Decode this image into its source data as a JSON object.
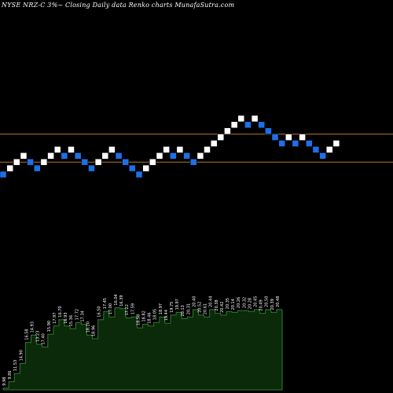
{
  "title": "NYSE NRZ-C 3%~  Closing Daily data  Renko  charts MunafaSutra.com",
  "chart_data": {
    "type": "renko",
    "title": "NYSE NRZ-C 3%~  Closing Daily data  Renko  charts MunafaSutra.com",
    "bricks": [
      {
        "level": 0,
        "dir": "down"
      },
      {
        "level": 1,
        "dir": "up"
      },
      {
        "level": 2,
        "dir": "up"
      },
      {
        "level": 3,
        "dir": "up"
      },
      {
        "level": 2,
        "dir": "down"
      },
      {
        "level": 1,
        "dir": "down"
      },
      {
        "level": 2,
        "dir": "up"
      },
      {
        "level": 3,
        "dir": "up"
      },
      {
        "level": 4,
        "dir": "up"
      },
      {
        "level": 3,
        "dir": "down"
      },
      {
        "level": 4,
        "dir": "up"
      },
      {
        "level": 3,
        "dir": "down"
      },
      {
        "level": 2,
        "dir": "down"
      },
      {
        "level": 1,
        "dir": "down"
      },
      {
        "level": 2,
        "dir": "up"
      },
      {
        "level": 3,
        "dir": "up"
      },
      {
        "level": 4,
        "dir": "up"
      },
      {
        "level": 3,
        "dir": "down"
      },
      {
        "level": 2,
        "dir": "down"
      },
      {
        "level": 1,
        "dir": "down"
      },
      {
        "level": 0,
        "dir": "down"
      },
      {
        "level": 1,
        "dir": "up"
      },
      {
        "level": 2,
        "dir": "up"
      },
      {
        "level": 3,
        "dir": "up"
      },
      {
        "level": 4,
        "dir": "up"
      },
      {
        "level": 3,
        "dir": "down"
      },
      {
        "level": 4,
        "dir": "up"
      },
      {
        "level": 3,
        "dir": "down"
      },
      {
        "level": 2,
        "dir": "down"
      },
      {
        "level": 3,
        "dir": "up"
      },
      {
        "level": 4,
        "dir": "up"
      },
      {
        "level": 5,
        "dir": "up"
      },
      {
        "level": 6,
        "dir": "up"
      },
      {
        "level": 7,
        "dir": "up"
      },
      {
        "level": 8,
        "dir": "up"
      },
      {
        "level": 9,
        "dir": "up"
      },
      {
        "level": 8,
        "dir": "down"
      },
      {
        "level": 9,
        "dir": "up"
      },
      {
        "level": 8,
        "dir": "down"
      },
      {
        "level": 7,
        "dir": "down"
      },
      {
        "level": 6,
        "dir": "down"
      },
      {
        "level": 5,
        "dir": "down"
      },
      {
        "level": 6,
        "dir": "up"
      },
      {
        "level": 5,
        "dir": "down"
      },
      {
        "level": 6,
        "dir": "up"
      },
      {
        "level": 5,
        "dir": "down"
      },
      {
        "level": 4,
        "dir": "down"
      },
      {
        "level": 3,
        "dir": "down"
      },
      {
        "level": 4,
        "dir": "up"
      },
      {
        "level": 5,
        "dir": "up"
      }
    ],
    "reference_lines": [
      {
        "level": 6.5
      },
      {
        "level": 2
      }
    ],
    "volume_labels": [
      "9.98",
      "9.86",
      "11.53",
      "14.90",
      "16.58",
      "14.93",
      "13.23",
      "17.40",
      "15.90",
      "17.97",
      "16.70",
      "16.93",
      "15.36",
      "17.72",
      "17.34",
      "18.10",
      "18.96",
      "16.50",
      "17.45",
      "17.00",
      "16.04",
      "16.39",
      "17.22",
      "17.59",
      "18.58",
      "18.82",
      "18.46",
      "18.05",
      "18.97",
      "19.44",
      "19.75",
      "19.97",
      "20.13",
      "20.31",
      "20.40",
      "20.52",
      "20.61",
      "20.44",
      "20.38",
      "20.42",
      "20.35",
      "20.14",
      "20.26",
      "20.32",
      "20.28",
      "20.45",
      "20.49",
      "20.50",
      "20.39",
      "20.48"
    ],
    "volume_levels": [
      0.02,
      0.09,
      0.18,
      0.29,
      0.52,
      0.6,
      0.5,
      0.47,
      0.61,
      0.7,
      0.77,
      0.7,
      0.67,
      0.74,
      0.72,
      0.6,
      0.56,
      0.77,
      0.86,
      0.8,
      0.9,
      0.89,
      0.79,
      0.8,
      0.68,
      0.72,
      0.7,
      0.74,
      0.8,
      0.73,
      0.82,
      0.85,
      0.78,
      0.8,
      0.88,
      0.82,
      0.8,
      0.88,
      0.84,
      0.82,
      0.86,
      0.85,
      0.87,
      0.87,
      0.86,
      0.88,
      0.84,
      0.88,
      0.85,
      0.88
    ]
  }
}
